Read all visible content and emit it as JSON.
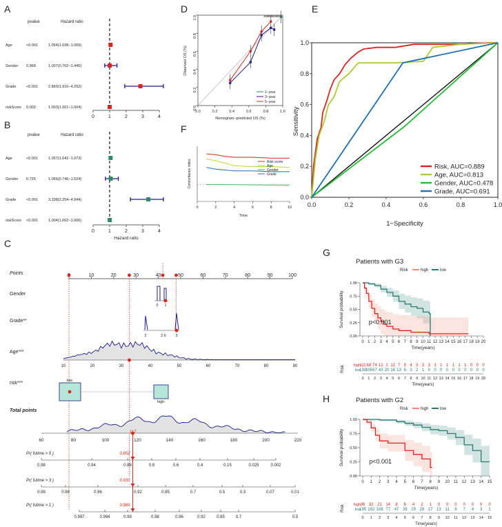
{
  "panels": {
    "A": "A",
    "B": "B",
    "C": "C",
    "D": "D",
    "E": "E",
    "F": "F",
    "G": "G",
    "H": "H"
  },
  "colors": {
    "red": "#d7261e",
    "navy": "#1a1a8c",
    "green": "#2a8a6a",
    "teal": "#2a7a70",
    "blue": "#1f6fb5",
    "lime": "#a8cc32",
    "salmon": "#f08a7e"
  },
  "chart_data": [
    {
      "id": "A",
      "type": "forest",
      "header_pvalue": "pvalue",
      "header_hr": "Hazard ratio",
      "xticks": [
        "0",
        "1",
        "2",
        "3",
        "4"
      ],
      "xlim": [
        0,
        4
      ],
      "rows": [
        {
          "label": "Age",
          "p": "<0.001",
          "ci": "1.054(1.038−1.069)",
          "hr": 1.054,
          "lo": 1.038,
          "hi": 1.069
        },
        {
          "label": "Gender",
          "p": "0.968",
          "ci": "1.007(0.702−1.445)",
          "hr": 1.007,
          "lo": 0.702,
          "hi": 1.445
        },
        {
          "label": "Grade",
          "p": "<0.001",
          "ci": "2.860(1.910−4.252)",
          "hr": 2.86,
          "lo": 1.91,
          "hi": 4.252
        },
        {
          "label": "riskScore",
          "p": "0.003",
          "ci": "1.003(1.001−1.004)",
          "hr": 1.003,
          "lo": 1.001,
          "hi": 1.004
        }
      ]
    },
    {
      "id": "B",
      "type": "forest",
      "header_pvalue": "pvalue",
      "header_hr": "Hazard ratio",
      "xlabel": "Hazard ratio",
      "xticks": [
        "0",
        "1",
        "2",
        "3",
        "4"
      ],
      "xlim": [
        0,
        4
      ],
      "rows": [
        {
          "label": "Age",
          "p": "<0.001",
          "ci": "1.057(1.042−1.073)",
          "hr": 1.057,
          "lo": 1.042,
          "hi": 1.073
        },
        {
          "label": "Gender",
          "p": "0.726",
          "ci": "1.066(0.746−1.524)",
          "hr": 1.066,
          "lo": 0.746,
          "hi": 1.524
        },
        {
          "label": "Grade",
          "p": "<0.001",
          "ci": "3.338(2.254−4.944)",
          "hr": 3.338,
          "lo": 2.254,
          "hi": 4.944
        },
        {
          "label": "riskScore",
          "p": "<0.001",
          "ci": "1.004(1.002−1.006)",
          "hr": 1.004,
          "lo": 1.002,
          "hi": 1.006
        }
      ]
    },
    {
      "id": "D",
      "type": "line",
      "xlabel": "Nomogram−predicted OS (%)",
      "ylabel": "Observed OS (%)",
      "xticks": [
        "0.0",
        "0.2",
        "0.4",
        "0.6",
        "0.8",
        "1.0"
      ],
      "yticks": [
        "0.0",
        "0.2",
        "0.4",
        "0.6",
        "0.8",
        "1.0"
      ],
      "xlim": [
        0,
        1
      ],
      "ylim": [
        0,
        1
      ],
      "series": [
        {
          "name": "1−year",
          "x": [
            0.98
          ],
          "y": [
            0.98
          ]
        },
        {
          "name": "3−year",
          "x": [
            0.38,
            0.62,
            0.75,
            0.86,
            0.9
          ],
          "y": [
            0.25,
            0.48,
            0.78,
            0.86,
            0.84
          ]
        },
        {
          "name": "5−year",
          "x": [
            0.38,
            0.62,
            0.75,
            0.86
          ],
          "y": [
            0.28,
            0.6,
            0.82,
            0.93
          ]
        }
      ]
    },
    {
      "id": "E",
      "type": "line",
      "xlabel": "1−Specificity",
      "ylabel": "Sensitivity",
      "xticks": [
        "0.0",
        "0.2",
        "0.4",
        "0.6",
        "0.8",
        "1.0"
      ],
      "yticks": [
        "0.0",
        "0.2",
        "0.4",
        "0.6",
        "0.8",
        "1.0"
      ],
      "xlim": [
        0,
        1
      ],
      "ylim": [
        0,
        1
      ],
      "series": [
        {
          "name": "Risk, AUC=0.889",
          "x": [
            0,
            0.01,
            0.03,
            0.05,
            0.06,
            0.08,
            0.1,
            0.12,
            0.15,
            0.18,
            0.21,
            0.25,
            0.28,
            0.35,
            0.45,
            0.55,
            0.8,
            0.95,
            1.0
          ],
          "y": [
            0,
            0.2,
            0.38,
            0.45,
            0.55,
            0.62,
            0.7,
            0.76,
            0.8,
            0.86,
            0.9,
            0.94,
            0.96,
            0.97,
            0.97,
            0.99,
            0.99,
            1.0,
            1.0
          ]
        },
        {
          "name": "Age, AUC=0.813",
          "x": [
            0,
            0.02,
            0.04,
            0.07,
            0.09,
            0.12,
            0.15,
            0.2,
            0.25,
            0.3,
            0.45,
            0.6,
            0.65,
            0.8,
            1.0
          ],
          "y": [
            0,
            0.25,
            0.4,
            0.5,
            0.6,
            0.65,
            0.75,
            0.8,
            0.87,
            0.87,
            0.87,
            0.88,
            0.97,
            0.99,
            1.0
          ]
        },
        {
          "name": "Gender, AUC=0.478",
          "x": [
            0,
            0.5,
            1.0
          ],
          "y": [
            0,
            0.46,
            1.0
          ]
        },
        {
          "name": "Grade, AUC=0.691",
          "x": [
            0,
            0.49,
            1.0
          ],
          "y": [
            0,
            0.87,
            1.0
          ]
        }
      ]
    },
    {
      "id": "F",
      "type": "line",
      "xlabel": "Time",
      "ylabel": "Concordance index",
      "xticks": [
        "0",
        "2",
        "4",
        "6",
        "8",
        "10"
      ],
      "xlim": [
        0,
        10
      ],
      "ylim": [
        0.3,
        0.95
      ],
      "series": [
        {
          "name": "Risk score",
          "x": [
            1,
            2,
            3,
            4,
            6,
            8,
            10
          ],
          "y": [
            0.86,
            0.85,
            0.83,
            0.82,
            0.82,
            0.81,
            0.81
          ]
        },
        {
          "name": "Age",
          "x": [
            1,
            2,
            3,
            4,
            6,
            8,
            10
          ],
          "y": [
            0.8,
            0.78,
            0.75,
            0.72,
            0.71,
            0.71,
            0.7
          ]
        },
        {
          "name": "Gender",
          "x": [
            1,
            10
          ],
          "y": [
            0.5,
            0.49
          ]
        },
        {
          "name": "Grade",
          "x": [
            1,
            2,
            4,
            6,
            8,
            10
          ],
          "y": [
            0.7,
            0.68,
            0.66,
            0.66,
            0.65,
            0.65
          ]
        }
      ]
    },
    {
      "id": "C",
      "type": "nomogram",
      "rows": [
        {
          "label": "Points",
          "ticks": [
            "0",
            "10",
            "20",
            "30",
            "40",
            "50",
            "60",
            "70",
            "80",
            "90",
            "100"
          ]
        },
        {
          "label": "Gender",
          "ticks": [
            "0",
            "1"
          ]
        },
        {
          "label": "Grade**",
          "ticks": [
            "2",
            "2.6",
            "3"
          ]
        },
        {
          "label": "Age***",
          "ticks": [
            "10",
            "20",
            "30",
            "40",
            "50",
            "60",
            "70",
            "80",
            "90"
          ]
        },
        {
          "label": "risk***",
          "ticks": [
            "low",
            "high"
          ]
        },
        {
          "label": "Total points",
          "ticks": [
            "60",
            "80",
            "100",
            "120",
            "140",
            "160",
            "180",
            "200",
            "220"
          ]
        },
        {
          "label": "Pr( futime > 5 )",
          "ticks": [
            "0.98",
            "0.94",
            "0.88",
            "0.8",
            "0.6",
            "0.4",
            "0.15",
            "0.025",
            "0.002"
          ]
        },
        {
          "label": "Pr( futime > 3 )",
          "ticks": [
            "0.99",
            "0.98",
            "0.96",
            "0.92",
            "0.85",
            "0.7",
            "0.5",
            "0.3",
            "0.07",
            "0.01"
          ]
        },
        {
          "label": "Pr( futime > 1 )",
          "ticks": [
            "0.997",
            "0.994",
            "0.99",
            "0.98",
            "0.96",
            "0.92",
            "0.85",
            "0.7",
            "0.5"
          ]
        }
      ],
      "total": 117,
      "pr5": 0.852,
      "pr3": 0.933,
      "pr1": 0.989,
      "labels": {
        "total": "117",
        "pr5": "0.852",
        "pr3": "0.933",
        "pr1": "0.989"
      }
    },
    {
      "id": "G",
      "type": "km",
      "title": "Patients with G3",
      "legend_label": "Risk",
      "groups": [
        "high",
        "low"
      ],
      "pvalue": "p<0.001",
      "xlabel": "Time(years)",
      "ylabel": "Survival probability",
      "risk_ylabel": "Risk",
      "yticks": [
        "0.00",
        "0.25",
        "0.50",
        "0.75",
        "1.00"
      ],
      "xticks": [
        "0",
        "1",
        "2",
        "3",
        "4",
        "5",
        "6",
        "7",
        "8",
        "9",
        "10",
        "11",
        "12",
        "13",
        "14",
        "15",
        "16",
        "17",
        "18",
        "19",
        "20"
      ],
      "xlim": [
        0,
        20
      ],
      "high": {
        "x": [
          0,
          0.3,
          0.6,
          1,
          1.5,
          2,
          2.5,
          3,
          3.5,
          4,
          5,
          6,
          8,
          11,
          17.5
        ],
        "y": [
          1,
          0.9,
          0.8,
          0.65,
          0.52,
          0.42,
          0.34,
          0.27,
          0.22,
          0.18,
          0.13,
          0.1,
          0.07,
          0.04,
          0.04
        ]
      },
      "low": {
        "x": [
          0,
          1,
          2,
          3,
          4,
          5,
          6,
          7,
          8,
          9,
          10,
          11,
          11.2
        ],
        "y": [
          1,
          0.98,
          0.95,
          0.88,
          0.82,
          0.75,
          0.65,
          0.6,
          0.55,
          0.52,
          0.45,
          0.42,
          0.0
        ]
      },
      "at_risk_high": [
        "111",
        "68",
        "74",
        "12",
        "1",
        "12",
        "7",
        "5",
        "4",
        "3",
        "3",
        "3",
        "3",
        "1",
        "1",
        "1",
        "1",
        "1",
        "0",
        "0",
        "0"
      ],
      "at_risk_low": [
        "130",
        "108",
        "67",
        "43",
        "20",
        "16",
        "13",
        "6",
        "3",
        "2",
        "1",
        "0",
        "0",
        "0",
        "0",
        "0",
        "0",
        "0",
        "0",
        "0",
        "0"
      ]
    },
    {
      "id": "H",
      "type": "km",
      "title": "Patients with G2",
      "legend_label": "Risk",
      "groups": [
        "high",
        "low"
      ],
      "pvalue": "p<0.001",
      "xlabel": "Time(years)",
      "ylabel": "Survival probability",
      "risk_ylabel": "Risk",
      "yticks": [
        "0.00",
        "0.25",
        "0.50",
        "0.75",
        "1.00"
      ],
      "xticks": [
        "0",
        "1",
        "2",
        "3",
        "4",
        "5",
        "6",
        "7",
        "8",
        "9",
        "10",
        "11",
        "12",
        "13",
        "14",
        "15"
      ],
      "xlim": [
        0,
        15
      ],
      "high": {
        "x": [
          0,
          0.5,
          1,
          1.5,
          2,
          3,
          5,
          6,
          7,
          8,
          8.2
        ],
        "y": [
          1,
          0.95,
          0.85,
          0.72,
          0.62,
          0.58,
          0.45,
          0.38,
          0.3,
          0.15,
          0.15
        ]
      },
      "low": {
        "x": [
          0,
          2,
          4,
          5,
          6,
          7,
          8,
          9,
          10,
          11,
          12,
          13,
          14,
          15
        ],
        "y": [
          1,
          0.99,
          0.96,
          0.93,
          0.9,
          0.86,
          0.82,
          0.8,
          0.75,
          0.68,
          0.55,
          0.45,
          0.25,
          0.25
        ]
      },
      "at_risk_high": [
        "36",
        "32",
        "21",
        "14",
        "8",
        "6",
        "4",
        "2",
        "1",
        "0",
        "0",
        "0",
        "0",
        "0",
        "0",
        "0"
      ],
      "at_risk_low": [
        "195",
        "162",
        "108",
        "77",
        "47",
        "35",
        "29",
        "28",
        "17",
        "13",
        "11",
        "8",
        "7",
        "4",
        "3",
        "1"
      ]
    }
  ]
}
